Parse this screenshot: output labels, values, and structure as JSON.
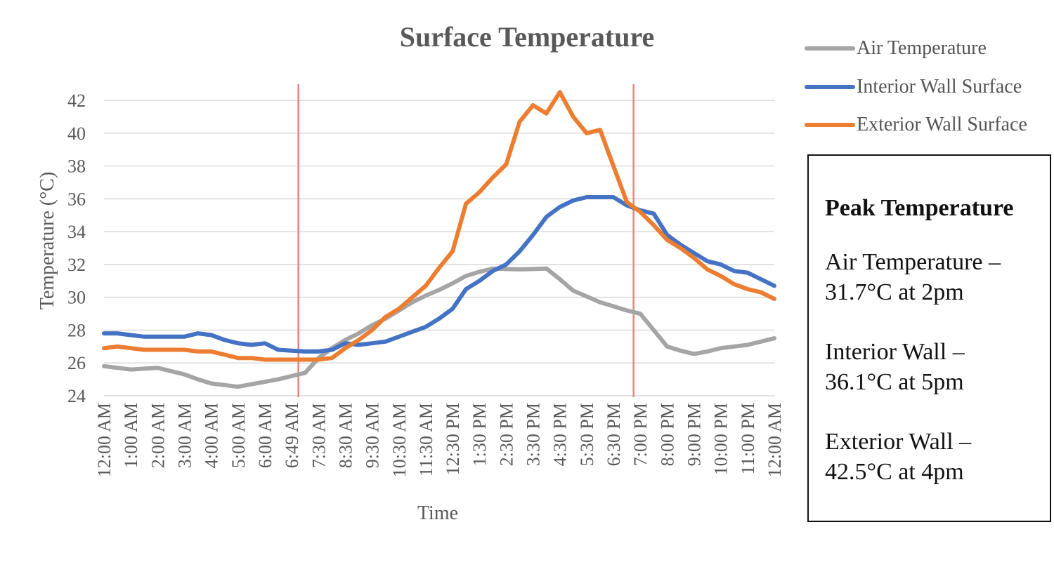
{
  "chart_data": {
    "type": "line",
    "title": "Surface Temperature",
    "xlabel": "Time",
    "ylabel": "Temperature (°C)",
    "ylim": [
      24,
      42
    ],
    "yticks": [
      24,
      26,
      28,
      30,
      32,
      34,
      36,
      38,
      40,
      42
    ],
    "grid": "horizontal",
    "legend_position": "top-right",
    "categories": [
      "12:00 AM",
      "1:00 AM",
      "2:00 AM",
      "3:00 AM",
      "4:00 AM",
      "5:00 AM",
      "6:00 AM",
      "6:49 AM",
      "7:30 AM",
      "8:30 AM",
      "9:30 AM",
      "10:30 AM",
      "11:30 AM",
      "12:30 PM",
      "1:30 PM",
      "2:30 PM",
      "3:30 PM",
      "4:30 PM",
      "5:30 PM",
      "6:30 PM",
      "7:00 PM",
      "8:00 PM",
      "9:00 PM",
      "10:00 PM",
      "11:00 PM",
      "12:00 AM"
    ],
    "x": [
      0,
      1,
      2,
      3,
      4,
      5,
      6,
      7,
      8,
      9,
      10,
      11,
      12,
      13,
      14,
      15,
      16,
      17,
      18,
      19,
      20,
      21,
      22,
      23,
      24,
      25,
      26,
      27,
      28,
      29,
      30,
      31,
      32,
      33,
      34,
      35,
      36,
      37,
      38,
      39,
      40,
      41,
      42,
      43,
      44,
      45,
      46,
      47,
      48,
      49,
      50
    ],
    "series": [
      {
        "name": "Air Temperature",
        "color": "#a5a5a5",
        "values": [
          25.8,
          25.7,
          25.6,
          25.65,
          25.7,
          25.5,
          25.3,
          25.0,
          24.75,
          24.65,
          24.55,
          24.7,
          24.85,
          25.0,
          25.2,
          25.4,
          26.3,
          26.9,
          27.4,
          27.8,
          28.3,
          28.7,
          29.2,
          29.7,
          30.1,
          30.45,
          30.85,
          31.3,
          31.55,
          31.75,
          31.72,
          31.7,
          31.72,
          31.75,
          31.1,
          30.4,
          30.05,
          29.7,
          29.45,
          29.2,
          29.0,
          28.0,
          27.0,
          26.75,
          26.55,
          26.7,
          26.9,
          27.0,
          27.1,
          27.3,
          27.5
        ]
      },
      {
        "name": "Interior Wall Surface",
        "color": "#4472c4",
        "values": [
          27.8,
          27.8,
          27.7,
          27.6,
          27.6,
          27.6,
          27.6,
          27.8,
          27.7,
          27.4,
          27.2,
          27.1,
          27.2,
          26.8,
          26.75,
          26.7,
          26.7,
          26.8,
          27.2,
          27.1,
          27.2,
          27.3,
          27.6,
          27.9,
          28.2,
          28.7,
          29.3,
          30.5,
          31.0,
          31.6,
          32.0,
          32.8,
          33.8,
          34.9,
          35.5,
          35.9,
          36.1,
          36.1,
          36.1,
          35.6,
          35.3,
          35.1,
          33.8,
          33.2,
          32.7,
          32.2,
          32.0,
          31.6,
          31.5,
          31.1,
          30.7
        ]
      },
      {
        "name": "Exterior Wall Surface",
        "color": "#ed7d31",
        "values": [
          26.9,
          27.0,
          26.9,
          26.8,
          26.8,
          26.8,
          26.8,
          26.7,
          26.7,
          26.5,
          26.3,
          26.3,
          26.2,
          26.2,
          26.2,
          26.2,
          26.2,
          26.3,
          26.9,
          27.4,
          28.0,
          28.8,
          29.3,
          30.0,
          30.7,
          31.8,
          32.8,
          35.7,
          36.4,
          37.3,
          38.1,
          40.7,
          41.7,
          41.2,
          42.5,
          41.0,
          40.0,
          40.2,
          38.0,
          35.8,
          35.2,
          34.4,
          33.5,
          33.0,
          32.4,
          31.7,
          31.3,
          30.8,
          30.5,
          30.3,
          29.9
        ]
      }
    ],
    "vertical_markers": [
      {
        "x": 14.5,
        "color": "#f08080"
      },
      {
        "x": 39.5,
        "color": "#f08080"
      }
    ]
  },
  "peak_box": {
    "title": "Peak Temperature",
    "entries": [
      {
        "line1": "Air Temperature –",
        "line2": "31.7°C at 2pm"
      },
      {
        "line1": "Interior Wall –",
        "line2": "36.1°C at 5pm"
      },
      {
        "line1": "Exterior Wall –",
        "line2": "42.5°C at 4pm"
      }
    ]
  }
}
